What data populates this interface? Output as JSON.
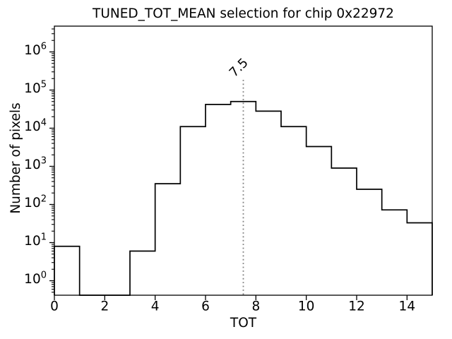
{
  "chart_data": {
    "type": "bar",
    "subtype": "step-histogram",
    "title": "TUNED_TOT_MEAN selection for chip 0x22972",
    "xlabel": "TOT",
    "ylabel": "Number of pixels",
    "yscale": "log",
    "xlim": [
      0,
      15
    ],
    "ylim": [
      0.41,
      4400000
    ],
    "xticks": [
      0,
      2,
      4,
      6,
      8,
      10,
      12,
      14
    ],
    "ytick_exponents": [
      0,
      1,
      2,
      3,
      4,
      5,
      6
    ],
    "bin_edges": [
      0,
      1,
      2,
      3,
      4,
      5,
      6,
      7,
      8,
      9,
      10,
      11,
      12,
      13,
      14,
      15
    ],
    "values": [
      8,
      0,
      0,
      6,
      350,
      11000,
      42000,
      50000,
      28000,
      11000,
      3300,
      900,
      250,
      72,
      33
    ],
    "line_color": "#000000",
    "grid": false,
    "legend_position": "none",
    "vline": {
      "x": 7.5,
      "label": "7.5",
      "color": "#7f7f7f",
      "style": "dotted"
    }
  }
}
